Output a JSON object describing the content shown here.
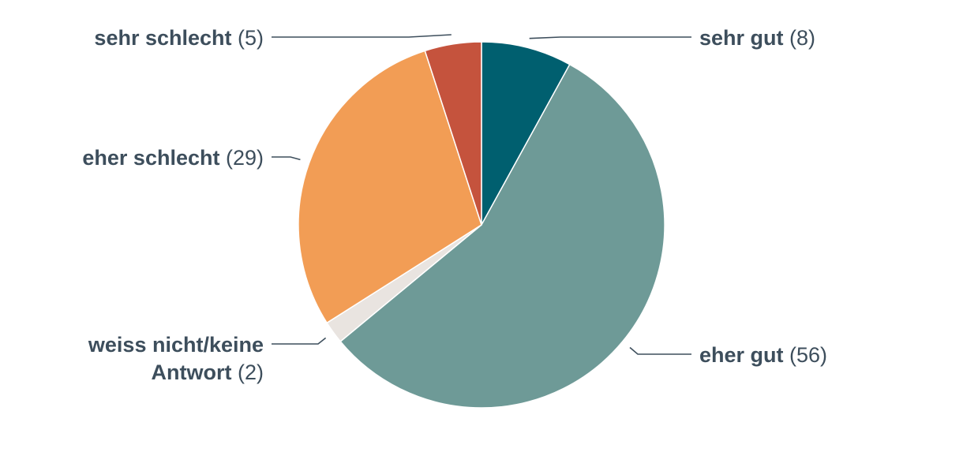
{
  "chart_data": {
    "type": "pie",
    "start_angle_deg": 0,
    "direction": "clockwise",
    "slices": [
      {
        "label": "sehr gut",
        "value": 8,
        "value_text": "(8)",
        "color": "#005f6f"
      },
      {
        "label": "eher gut",
        "value": 56,
        "value_text": "(56)",
        "color": "#6e9a97"
      },
      {
        "label_lines": [
          "weiss nicht/keine",
          "Antwort"
        ],
        "label": "weiss nicht/keine Antwort",
        "value": 2,
        "value_text": "(2)",
        "color": "#e9e4e0"
      },
      {
        "label": "eher schlecht",
        "value": 29,
        "value_text": "(29)",
        "color": "#f29d55"
      },
      {
        "label": "sehr schlecht",
        "value": 5,
        "value_text": "(5)",
        "color": "#c5533d"
      }
    ]
  }
}
